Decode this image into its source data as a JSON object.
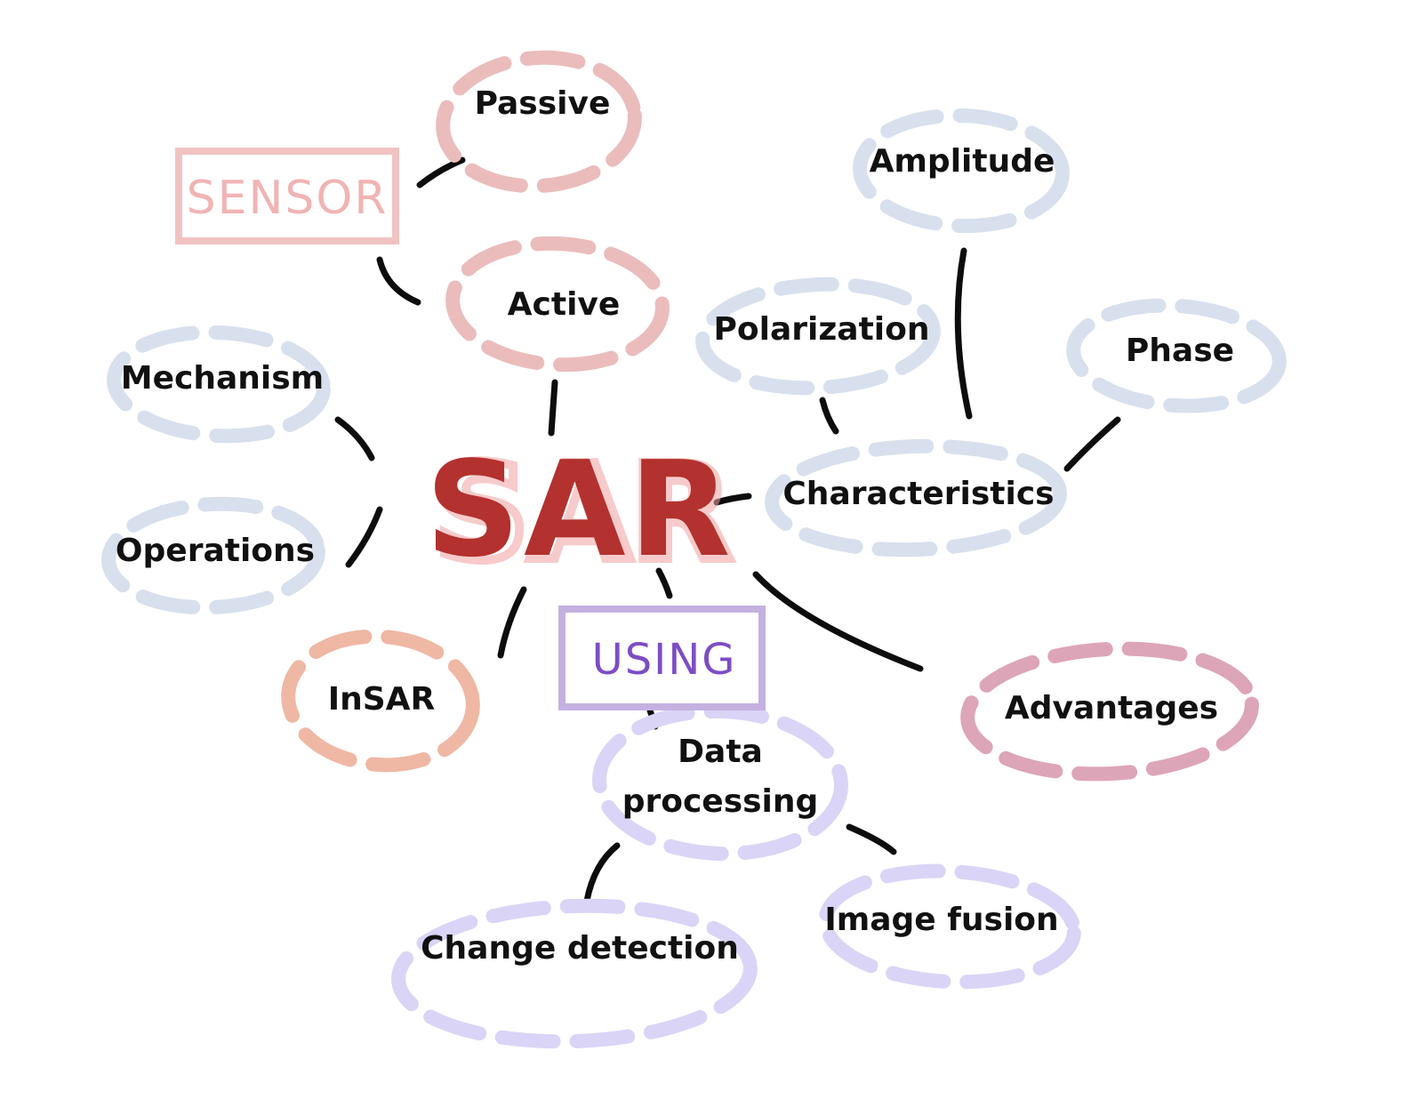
{
  "diagram": {
    "center": "SAR",
    "tags": {
      "sensor": "SENSOR",
      "using": "USING"
    },
    "nodes": {
      "passive": "Passive",
      "active": "Active",
      "amplitude": "Amplitude",
      "polarization": "Polarization",
      "phase": "Phase",
      "characteristics": "Characteristics",
      "mechanism": "Mechanism",
      "operations": "Operations",
      "insar": "InSAR",
      "advantages": "Advantages",
      "data_processing_line1": "Data",
      "data_processing_line2": "processing",
      "change_detection": "Change detection",
      "image_fusion": "Image fusion"
    }
  },
  "colors": {
    "center": "#b3312e",
    "center_highlight": "#f2a2a2",
    "sensor": "#f0c3c3",
    "using": "#c4b1e0",
    "using_text": "#7c4dc4",
    "sensor_bubbles": "#ebbcbc",
    "blue_bubbles": "#d8e0ee",
    "insar_bubble": "#efb8a4",
    "advantages_bubble": "#dda5b8",
    "purple_bubbles": "#dad4f6",
    "connector": "#0d0d0d"
  }
}
